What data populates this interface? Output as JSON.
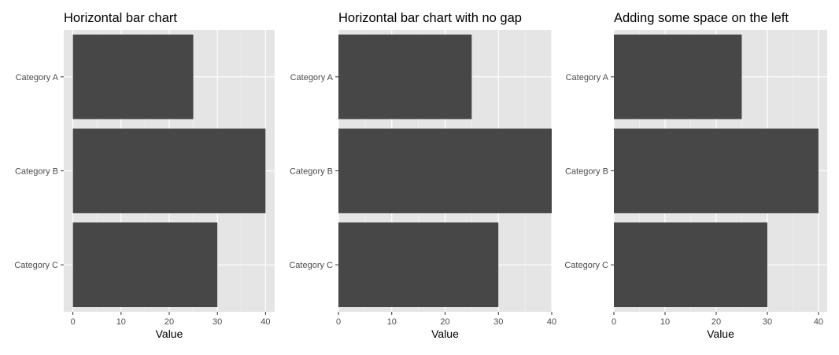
{
  "chart_data": [
    {
      "type": "bar",
      "orientation": "horizontal",
      "title": "Horizontal bar chart",
      "xlabel": "Value",
      "ylabel": "",
      "categories": [
        "Category A",
        "Category B",
        "Category C"
      ],
      "values": [
        25,
        40,
        30
      ],
      "xlim": [
        -1.9,
        41.9
      ],
      "xticks": [
        0,
        10,
        20,
        30,
        40
      ],
      "grid": true,
      "legend": "none",
      "bar_color": "#474747",
      "panel_bg": "#e5e5e5"
    },
    {
      "type": "bar",
      "orientation": "horizontal",
      "title": "Horizontal bar chart with no gap",
      "xlabel": "Value",
      "ylabel": "",
      "categories": [
        "Category A",
        "Category B",
        "Category C"
      ],
      "values": [
        25,
        40,
        30
      ],
      "xlim": [
        0,
        40
      ],
      "xticks": [
        0,
        10,
        20,
        30,
        40
      ],
      "grid": true,
      "legend": "none",
      "bar_color": "#474747",
      "panel_bg": "#e5e5e5"
    },
    {
      "type": "bar",
      "orientation": "horizontal",
      "title": "Adding some space on the left",
      "xlabel": "Value",
      "ylabel": "",
      "categories": [
        "Category A",
        "Category B",
        "Category C"
      ],
      "values": [
        25,
        40,
        30
      ],
      "xlim": [
        0,
        41.7
      ],
      "xticks": [
        0,
        10,
        20,
        30,
        40
      ],
      "grid": true,
      "legend": "none",
      "bar_color": "#474747",
      "panel_bg": "#e5e5e5"
    }
  ]
}
